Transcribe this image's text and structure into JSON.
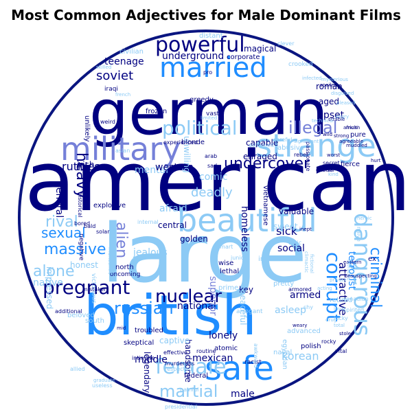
{
  "title": "Most Common Adjectives for Male Dominant Films",
  "colors": {
    "background": "#ffffff",
    "outline": "#0a1580",
    "dark": "#000080",
    "medium_blue": "#1f8dff",
    "light_blue": "#8ccaf5",
    "slate": "#7580d8"
  },
  "words": [
    {
      "text": "american",
      "color": "dark"
    },
    {
      "text": "large",
      "color": "light_blue"
    },
    {
      "text": "german",
      "color": "dark"
    },
    {
      "text": "british",
      "color": "medium_blue"
    },
    {
      "text": "military",
      "color": "slate"
    },
    {
      "text": "strange",
      "color": "light_blue"
    },
    {
      "text": "beautiful",
      "color": "light_blue"
    },
    {
      "text": "married",
      "color": "medium_blue"
    },
    {
      "text": "safe",
      "color": "medium_blue"
    },
    {
      "text": "powerful",
      "color": "dark"
    },
    {
      "text": "political",
      "color": "light_blue"
    },
    {
      "text": "pregnant",
      "color": "dark"
    },
    {
      "text": "dangerous",
      "color": "light_blue"
    },
    {
      "text": "female",
      "color": "light_blue"
    },
    {
      "text": "corrupt",
      "color": "medium_blue"
    },
    {
      "text": "illegal",
      "color": "slate"
    },
    {
      "text": "nuclear",
      "color": "dark"
    },
    {
      "text": "russian",
      "color": "medium_blue"
    },
    {
      "text": "undercover",
      "color": "dark"
    },
    {
      "text": "massive",
      "color": "medium_blue"
    },
    {
      "text": "criminal",
      "color": "medium_blue"
    },
    {
      "text": "alone",
      "color": "light_blue"
    },
    {
      "text": "martial",
      "color": "light_blue"
    },
    {
      "text": "rival",
      "color": "light_blue"
    },
    {
      "text": "sexual",
      "color": "medium_blue"
    },
    {
      "text": "alien",
      "color": "slate"
    },
    {
      "text": "heavy",
      "color": "dark"
    },
    {
      "text": "soviet",
      "color": "dark"
    },
    {
      "text": "ruthless",
      "color": "dark"
    },
    {
      "text": "mental",
      "color": "light_blue"
    },
    {
      "text": "deadly",
      "color": "light_blue"
    },
    {
      "text": "western",
      "color": "dark"
    },
    {
      "text": "attractive",
      "color": "dark"
    },
    {
      "text": "social",
      "color": "dark"
    },
    {
      "text": "korean",
      "color": "light_blue"
    },
    {
      "text": "mexican",
      "color": "dark"
    },
    {
      "text": "teenage",
      "color": "dark"
    },
    {
      "text": "underground",
      "color": "dark"
    },
    {
      "text": "upset",
      "color": "dark"
    },
    {
      "text": "comic",
      "color": "light_blue"
    },
    {
      "text": "sick",
      "color": "dark"
    },
    {
      "text": "armed",
      "color": "dark"
    },
    {
      "text": "national",
      "color": "dark"
    },
    {
      "text": "middle",
      "color": "dark"
    },
    {
      "text": "male",
      "color": "dark"
    },
    {
      "text": "homeless",
      "color": "dark"
    },
    {
      "text": "valuable",
      "color": "dark"
    },
    {
      "text": "terrorist",
      "color": "medium_blue"
    },
    {
      "text": "honest",
      "color": "light_blue"
    },
    {
      "text": "afraid",
      "color": "light_blue"
    },
    {
      "text": "central",
      "color": "dark"
    },
    {
      "text": "jealous",
      "color": "light_blue"
    },
    {
      "text": "superior",
      "color": "slate"
    },
    {
      "text": "asleep",
      "color": "light_blue"
    },
    {
      "text": "lonely",
      "color": "dark"
    },
    {
      "text": "handsome",
      "color": "dark"
    },
    {
      "text": "golden",
      "color": "dark"
    },
    {
      "text": "general",
      "color": "dark"
    },
    {
      "text": "native",
      "color": "light_blue"
    },
    {
      "text": "magical",
      "color": "dark"
    },
    {
      "text": "roman",
      "color": "dark"
    },
    {
      "text": "aged",
      "color": "dark"
    },
    {
      "text": "key",
      "color": "dark"
    },
    {
      "text": "sweet",
      "color": "light_blue"
    },
    {
      "text": "peaceful",
      "color": "light_blue"
    },
    {
      "text": "captive",
      "color": "light_blue"
    },
    {
      "text": "legendary",
      "color": "dark"
    },
    {
      "text": "explosive",
      "color": "dark"
    },
    {
      "text": "impressed",
      "color": "light_blue"
    },
    {
      "text": "irish",
      "color": "dark"
    },
    {
      "text": "unwilling",
      "color": "light_blue"
    },
    {
      "text": "capable",
      "color": "dark"
    },
    {
      "text": "enraged",
      "color": "dark"
    },
    {
      "text": "distant",
      "color": "light_blue"
    },
    {
      "text": "corporate",
      "color": "dark"
    },
    {
      "text": "frozen",
      "color": "dark"
    },
    {
      "text": "abusive",
      "color": "light_blue"
    },
    {
      "text": "blonde",
      "color": "dark"
    },
    {
      "text": "greedy",
      "color": "dark"
    },
    {
      "text": "unlikely",
      "color": "dark"
    },
    {
      "text": "federal",
      "color": "dark"
    },
    {
      "text": "atomic",
      "color": "dark"
    },
    {
      "text": "skeptical",
      "color": "dark"
    },
    {
      "text": "lead",
      "color": "light_blue"
    },
    {
      "text": "north",
      "color": "dark"
    },
    {
      "text": "wise",
      "color": "dark"
    },
    {
      "text": "lethal",
      "color": "dark"
    },
    {
      "text": "prime",
      "color": "light_blue"
    },
    {
      "text": "pretty",
      "color": "light_blue"
    },
    {
      "text": "troubled",
      "color": "dark"
    },
    {
      "text": "beloved",
      "color": "light_blue"
    },
    {
      "text": "south",
      "color": "light_blue"
    },
    {
      "text": "vietnamese",
      "color": "dark"
    },
    {
      "text": "naval",
      "color": "light_blue"
    },
    {
      "text": "polish",
      "color": "dark"
    },
    {
      "text": "advanced",
      "color": "light_blue"
    },
    {
      "text": "egyptian",
      "color": "light_blue"
    },
    {
      "text": "fierce",
      "color": "dark"
    },
    {
      "text": "retired",
      "color": "light_blue"
    },
    {
      "text": "ex",
      "color": "dark"
    },
    {
      "text": "infamous",
      "color": "light_blue"
    },
    {
      "text": "clever",
      "color": "light_blue"
    },
    {
      "text": "civilian",
      "color": "light_blue"
    },
    {
      "text": "crooked",
      "color": "light_blue"
    },
    {
      "text": "iraqi",
      "color": "dark"
    },
    {
      "text": "vast",
      "color": "dark"
    },
    {
      "text": "pure",
      "color": "dark"
    },
    {
      "text": "victorious",
      "color": "light_blue"
    },
    {
      "text": "oncoming",
      "color": "dark"
    },
    {
      "text": "arrogant",
      "color": "light_blue"
    },
    {
      "text": "presidential",
      "color": "light_blue"
    },
    {
      "text": "negative",
      "color": "dark"
    },
    {
      "text": "racist",
      "color": "dark"
    },
    {
      "text": "painful",
      "color": "light_blue"
    },
    {
      "text": "bored",
      "color": "dark"
    },
    {
      "text": "internal",
      "color": "light_blue"
    },
    {
      "text": "asian",
      "color": "light_blue"
    },
    {
      "text": "arab",
      "color": "dark"
    },
    {
      "text": "ashamed",
      "color": "light_blue"
    },
    {
      "text": "careful",
      "color": "light_blue"
    },
    {
      "text": "experienced",
      "color": "dark"
    },
    {
      "text": "historical",
      "color": "dark"
    },
    {
      "text": "passionate",
      "color": "dark"
    },
    {
      "text": "weird",
      "color": "dark"
    },
    {
      "text": "cuban",
      "color": "dark"
    },
    {
      "text": "secret",
      "color": "dark"
    },
    {
      "text": "rebel",
      "color": "dark"
    },
    {
      "text": "toxic",
      "color": "light_blue"
    },
    {
      "text": "spirited",
      "color": "light_blue"
    },
    {
      "text": "armored",
      "color": "dark"
    },
    {
      "text": "shy",
      "color": "light_blue"
    },
    {
      "text": "canadian",
      "color": "light_blue"
    },
    {
      "text": "lucky",
      "color": "light_blue"
    },
    {
      "text": "smart",
      "color": "light_blue"
    },
    {
      "text": "sad",
      "color": "dark"
    },
    {
      "text": "junior",
      "color": "light_blue"
    },
    {
      "text": "mistaken",
      "color": "dark"
    },
    {
      "text": "routine",
      "color": "dark"
    },
    {
      "text": "intimate",
      "color": "dark"
    },
    {
      "text": "respected",
      "color": "light_blue"
    },
    {
      "text": "murderous",
      "color": "dark"
    },
    {
      "text": "effective",
      "color": "dark"
    },
    {
      "text": "awkward",
      "color": "light_blue"
    },
    {
      "text": "rocky",
      "color": "dark"
    },
    {
      "text": "vital",
      "color": "dark"
    },
    {
      "text": "allied",
      "color": "light_blue"
    },
    {
      "text": "useless",
      "color": "light_blue"
    },
    {
      "text": "pro",
      "color": "dark"
    },
    {
      "text": "infected",
      "color": "light_blue"
    },
    {
      "text": "solar",
      "color": "dark"
    },
    {
      "text": "bald",
      "color": "dark"
    },
    {
      "text": "makeshift",
      "color": "light_blue"
    },
    {
      "text": "additional",
      "color": "dark"
    },
    {
      "text": "eastern",
      "color": "dark"
    },
    {
      "text": "heroic",
      "color": "light_blue"
    },
    {
      "text": "climactic",
      "color": "light_blue"
    },
    {
      "text": "inept",
      "color": "dark"
    },
    {
      "text": "fictional",
      "color": "light_blue"
    },
    {
      "text": "naive",
      "color": "light_blue"
    },
    {
      "text": "spoiled",
      "color": "dark"
    },
    {
      "text": "limited",
      "color": "light_blue"
    },
    {
      "text": "total",
      "color": "light_blue"
    },
    {
      "text": "mid",
      "color": "dark"
    },
    {
      "text": "sizable",
      "color": "dark"
    },
    {
      "text": "significant",
      "color": "light_blue"
    },
    {
      "text": "angry",
      "color": "light_blue"
    },
    {
      "text": "agreeable",
      "color": "dark"
    },
    {
      "text": "disguised",
      "color": "light_blue"
    },
    {
      "text": "pleased",
      "color": "light_blue"
    },
    {
      "text": "skilled",
      "color": "light_blue"
    },
    {
      "text": "private",
      "color": "light_blue"
    },
    {
      "text": "strong",
      "color": "dark"
    },
    {
      "text": "african",
      "color": "dark"
    },
    {
      "text": "lucrative",
      "color": "light_blue"
    },
    {
      "text": "acting",
      "color": "light_blue"
    },
    {
      "text": "far",
      "color": "dark"
    },
    {
      "text": "weary",
      "color": "dark"
    },
    {
      "text": "kind",
      "color": "light_blue"
    },
    {
      "text": "drug",
      "color": "light_blue"
    },
    {
      "text": "unsuspecting",
      "color": "dark"
    },
    {
      "text": "hurt",
      "color": "dark"
    },
    {
      "text": "muddled",
      "color": "dark"
    },
    {
      "text": "stolen",
      "color": "dark"
    },
    {
      "text": "technical",
      "color": "light_blue"
    },
    {
      "text": "french",
      "color": "light_blue"
    },
    {
      "text": "wild",
      "color": "dark"
    },
    {
      "text": "loyal",
      "color": "light_blue"
    },
    {
      "text": "graduate",
      "color": "light_blue"
    },
    {
      "text": "multi",
      "color": "dark"
    },
    {
      "text": "worst",
      "color": "dark"
    },
    {
      "text": "mysterious",
      "color": "light_blue"
    }
  ]
}
